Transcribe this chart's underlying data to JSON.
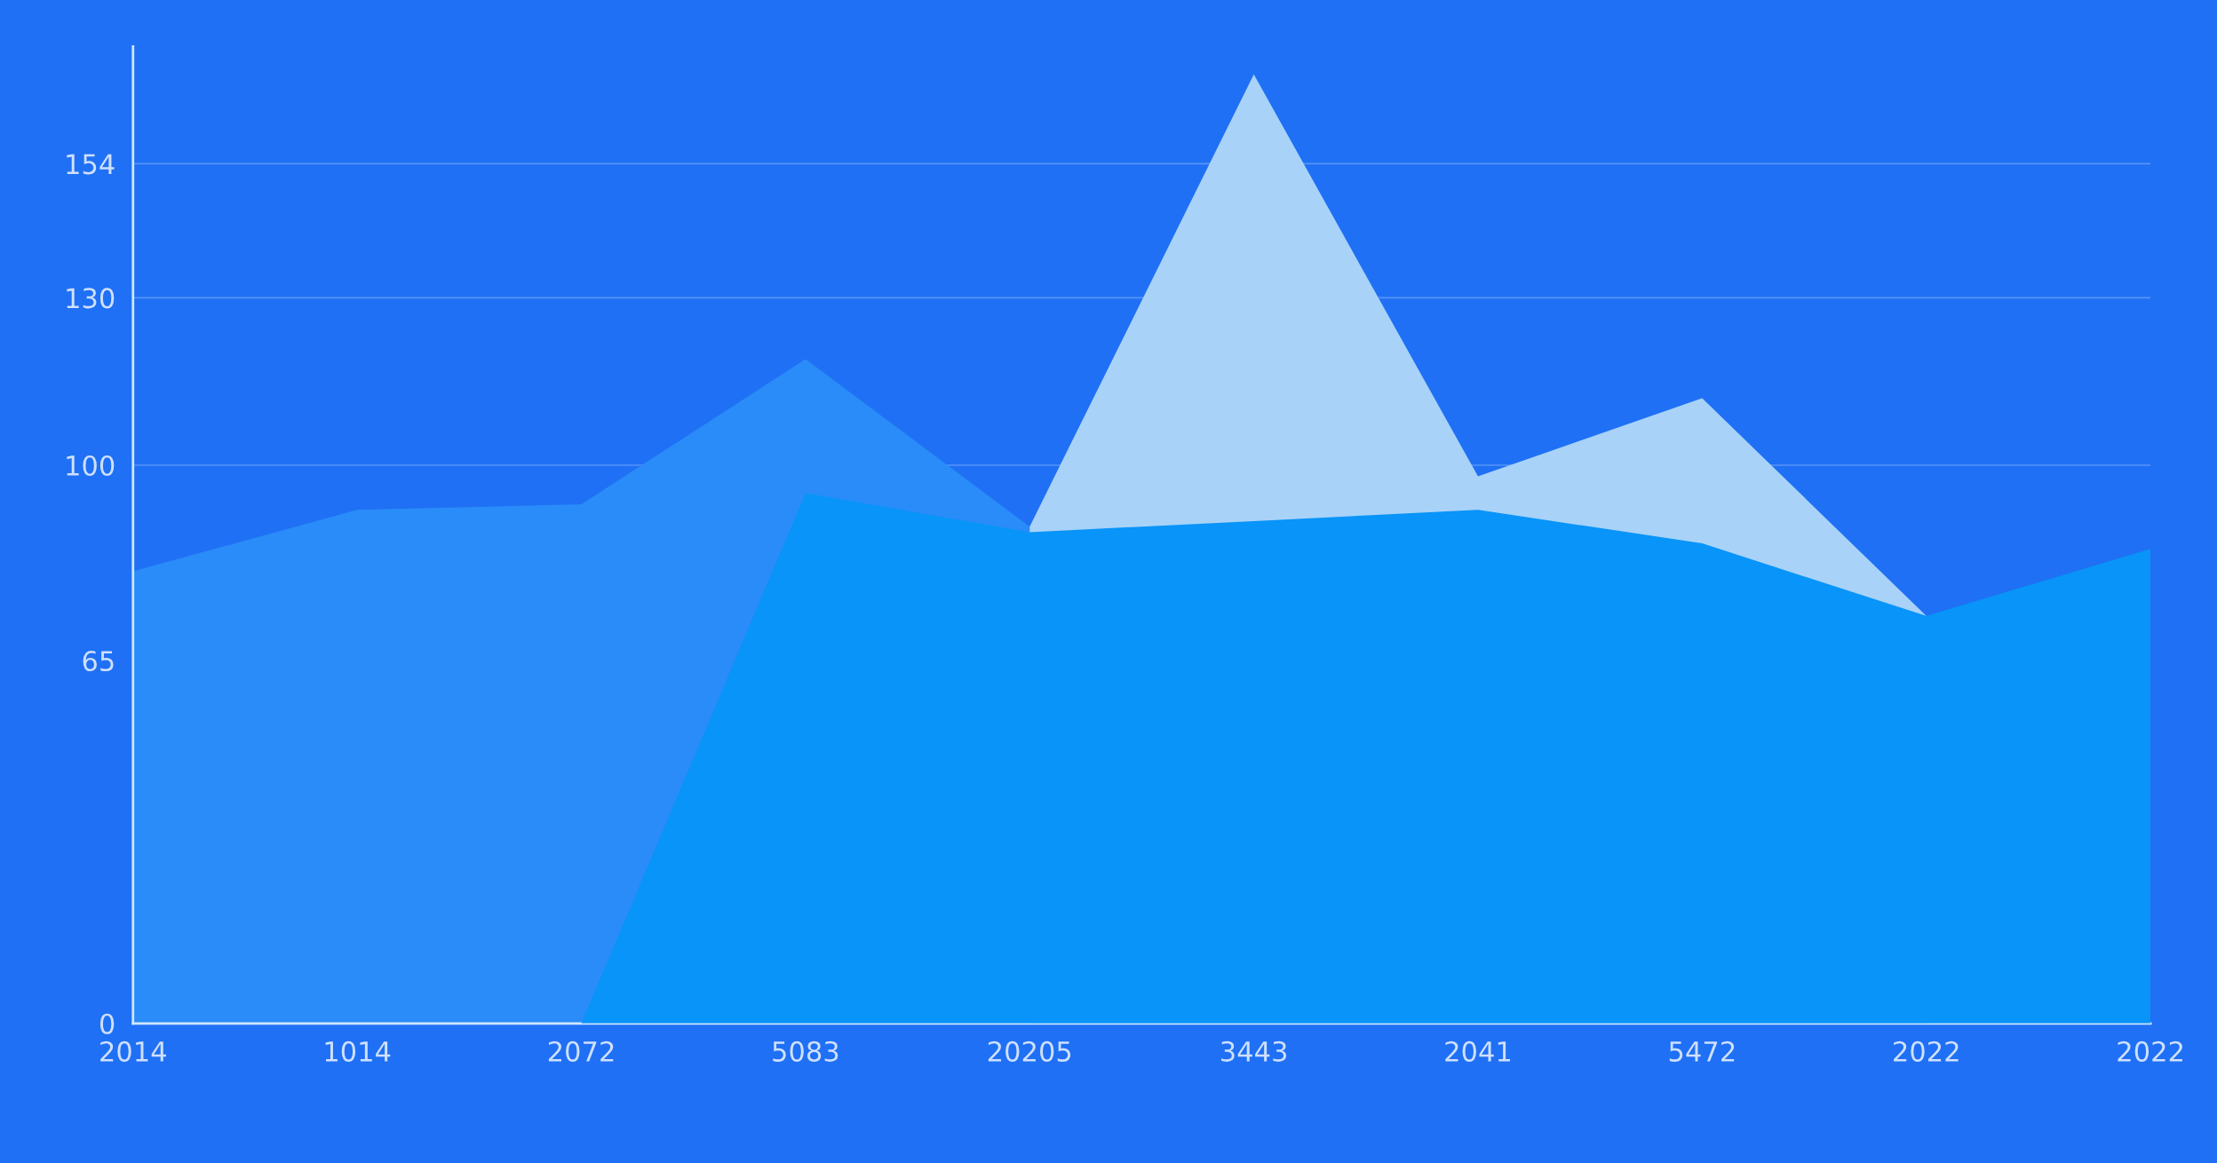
{
  "chart_data": {
    "type": "area",
    "categories": [
      "2014",
      "1014",
      "2072",
      "5083",
      "20205",
      "3443",
      "2041",
      "5472",
      "2022",
      "2022"
    ],
    "series": [
      {
        "color": "#2a8cf8",
        "values": [
          81,
          92,
          93,
          119,
          89,
          null,
          null,
          null,
          null,
          null
        ]
      },
      {
        "color": "#a8d2f8",
        "values": [
          null,
          null,
          null,
          null,
          89,
          170,
          98,
          112,
          73,
          null
        ]
      },
      {
        "color": "#0894f8",
        "values": [
          0,
          0,
          0,
          95,
          88,
          90,
          92,
          86,
          73,
          85
        ]
      }
    ],
    "ylim": [
      0,
      175
    ],
    "yticks": [
      0,
      65,
      100,
      130,
      154
    ],
    "grid": "y"
  }
}
